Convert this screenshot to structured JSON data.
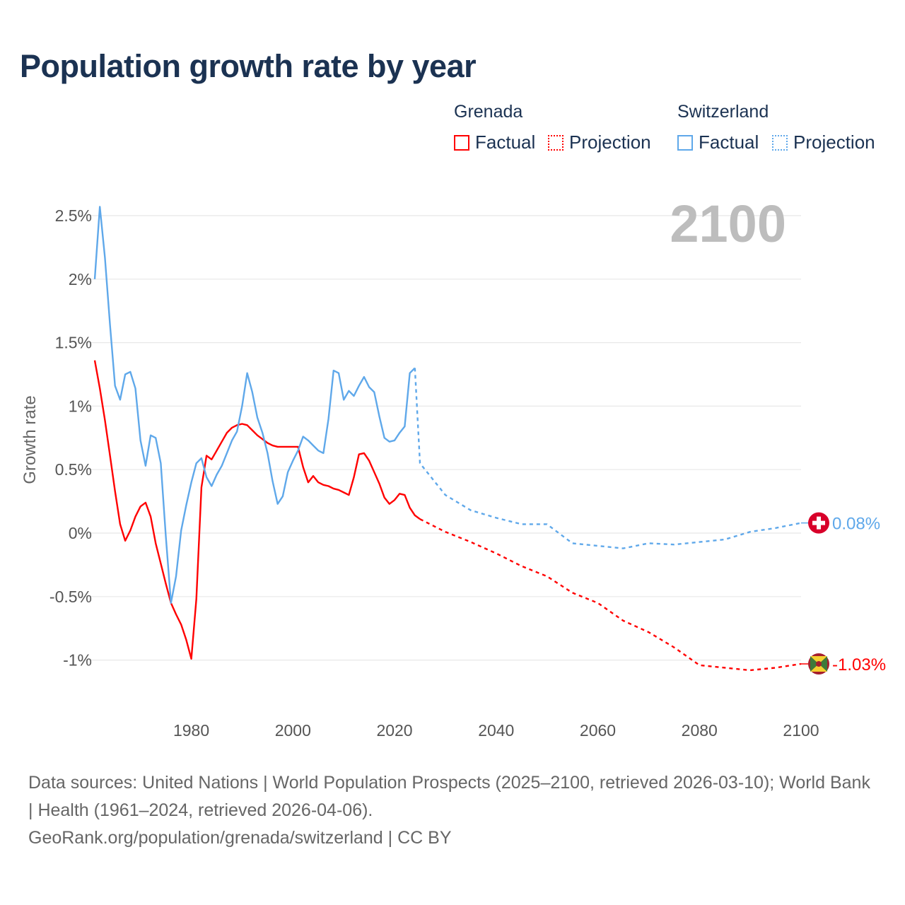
{
  "title": "Population growth rate by year",
  "legend": {
    "groups": [
      {
        "name": "Grenada",
        "factual": "Factual",
        "projection": "Projection",
        "color": "#ff0000"
      },
      {
        "name": "Switzerland",
        "factual": "Factual",
        "projection": "Projection",
        "color": "#5fa8ea"
      }
    ]
  },
  "year_label": "2100",
  "footer": {
    "sources": "Data sources: United Nations | World Population Prospects (2025–2100, retrieved 2026-03-10); World Bank | Health (1961–2024, retrieved 2026-04-06).",
    "link": "GeoRank.org/population/grenada/switzerland | CC BY"
  },
  "chart_data": {
    "type": "line",
    "title": "Population growth rate by year",
    "xlabel": "",
    "ylabel": "Growth rate",
    "xlim": [
      1961,
      2100
    ],
    "ylim": [
      -1.25,
      2.6
    ],
    "x_ticks": [
      1980,
      2000,
      2020,
      2040,
      2060,
      2080,
      2100
    ],
    "y_ticks": [
      -1,
      -0.5,
      0,
      0.5,
      1,
      1.5,
      2,
      2.5
    ],
    "y_tick_labels": [
      "-1%",
      "-0.5%",
      "0%",
      "0.5%",
      "1%",
      "1.5%",
      "2%",
      "2.5%"
    ],
    "grid": true,
    "series": [
      {
        "name": "Grenada Factual",
        "color": "#ff0000",
        "style": "solid",
        "start_year": 1961,
        "values": [
          1.36,
          1.14,
          0.89,
          0.61,
          0.33,
          0.07,
          -0.06,
          0.02,
          0.13,
          0.21,
          0.24,
          0.13,
          -0.08,
          -0.24,
          -0.4,
          -0.55,
          -0.64,
          -0.72,
          -0.84,
          -0.99,
          -0.52,
          0.36,
          0.61,
          0.58,
          0.65,
          0.72,
          0.79,
          0.83,
          0.85,
          0.86,
          0.85,
          0.81,
          0.77,
          0.74,
          0.71,
          0.69,
          0.68,
          0.68,
          0.68,
          0.68,
          0.68,
          0.52,
          0.4,
          0.45,
          0.4,
          0.38,
          0.37,
          0.35,
          0.34,
          0.32,
          0.3,
          0.44,
          0.62,
          0.63,
          0.57,
          0.48,
          0.39,
          0.28,
          0.23,
          0.26,
          0.31,
          0.3,
          0.2,
          0.14,
          0.11
        ]
      },
      {
        "name": "Grenada Projection",
        "color": "#ff0000",
        "style": "dotted",
        "x": [
          2025,
          2030,
          2035,
          2040,
          2045,
          2050,
          2055,
          2060,
          2065,
          2070,
          2075,
          2080,
          2085,
          2090,
          2095,
          2100
        ],
        "values": [
          0.11,
          0.01,
          -0.07,
          -0.16,
          -0.26,
          -0.34,
          -0.47,
          -0.55,
          -0.69,
          -0.78,
          -0.9,
          -1.04,
          -1.06,
          -1.08,
          -1.06,
          -1.03
        ]
      },
      {
        "name": "Switzerland Factual",
        "color": "#5fa8ea",
        "style": "solid",
        "start_year": 1961,
        "values": [
          2.0,
          2.57,
          2.17,
          1.64,
          1.16,
          1.05,
          1.25,
          1.27,
          1.14,
          0.73,
          0.53,
          0.77,
          0.75,
          0.55,
          -0.03,
          -0.55,
          -0.34,
          0.02,
          0.22,
          0.4,
          0.55,
          0.59,
          0.44,
          0.37,
          0.46,
          0.53,
          0.63,
          0.73,
          0.8,
          1.0,
          1.26,
          1.11,
          0.91,
          0.79,
          0.63,
          0.41,
          0.23,
          0.29,
          0.48,
          0.57,
          0.65,
          0.76,
          0.73,
          0.69,
          0.65,
          0.63,
          0.9,
          1.28,
          1.26,
          1.05,
          1.12,
          1.08,
          1.16,
          1.23,
          1.15,
          1.11,
          0.92,
          0.75,
          0.72,
          0.73,
          0.79,
          0.84,
          1.26,
          1.3
        ]
      },
      {
        "name": "Switzerland Projection",
        "color": "#5fa8ea",
        "style": "dotted",
        "x": [
          2024,
          2025,
          2030,
          2035,
          2040,
          2045,
          2050,
          2055,
          2060,
          2065,
          2070,
          2075,
          2080,
          2085,
          2090,
          2095,
          2100
        ],
        "values": [
          1.3,
          0.55,
          0.3,
          0.18,
          0.12,
          0.07,
          0.07,
          -0.08,
          -0.1,
          -0.12,
          -0.08,
          -0.09,
          -0.07,
          -0.05,
          0.01,
          0.04,
          0.08
        ]
      }
    ],
    "end_labels": [
      {
        "country": "Switzerland",
        "value": 0.08,
        "text": "0.08%",
        "color": "#5fa8ea",
        "flag": "switzerland-flag"
      },
      {
        "country": "Grenada",
        "value": -1.03,
        "text": "-1.03%",
        "color": "#ff0000",
        "flag": "grenada-flag"
      }
    ]
  }
}
